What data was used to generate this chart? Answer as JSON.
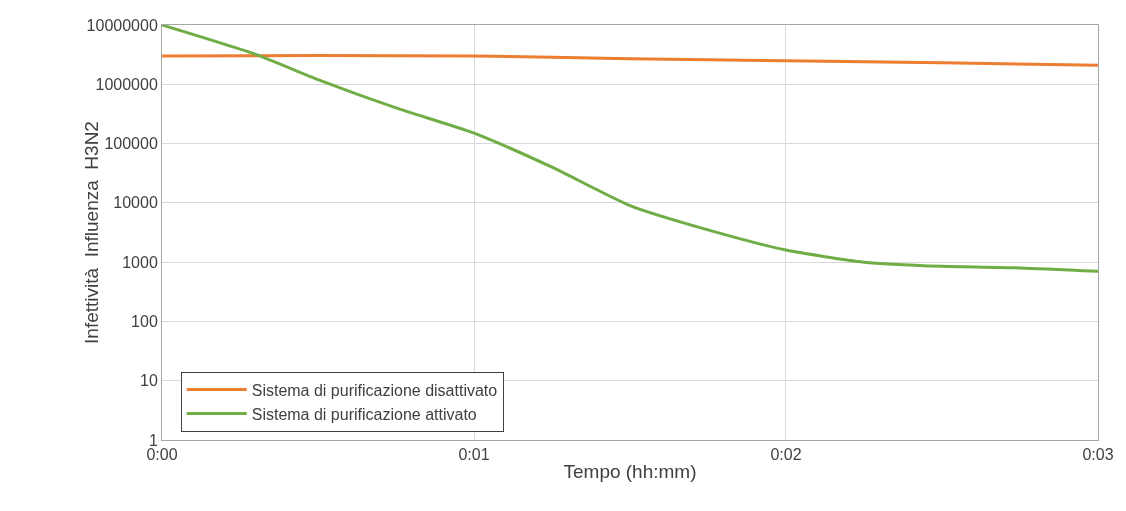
{
  "chart_data": {
    "type": "line",
    "xlabel": "Tempo (hh:mm)",
    "ylabel": "Infettività  Influenza  H3N2",
    "log": "y",
    "grid": true,
    "legend": "bottom left",
    "marker": "none",
    "line_style": "solid",
    "xlim": [
      0,
      0.05
    ],
    "xticks": [
      {
        "value": 0,
        "label": "0:00"
      },
      {
        "value": 0.016667,
        "label": "0:01"
      },
      {
        "value": 0.033333,
        "label": "0:02"
      },
      {
        "value": 0.05,
        "label": "0:03"
      }
    ],
    "ylim": [
      1,
      10000000
    ],
    "yticks": [
      1,
      10,
      100,
      1000,
      10000,
      100000,
      1000000,
      10000000
    ],
    "series": [
      {
        "name": "Sistema di purificazione disattivato",
        "color": "#ed7d31",
        "x": [
          0,
          0.008333,
          0.016667,
          0.025,
          0.033333,
          0.041667,
          0.05
        ],
        "values": [
          3000000,
          3050000,
          3000000,
          2700000,
          2500000,
          2300000,
          2100000
        ]
      },
      {
        "name": "Sistema di purificazione attivato",
        "color": "#70ad47",
        "x": [
          0,
          0.005,
          0.008333,
          0.0125,
          0.016667,
          0.020833,
          0.025,
          0.029167,
          0.033333,
          0.0375,
          0.041667,
          0.045833,
          0.05
        ],
        "values": [
          10000000,
          3200000,
          1200000,
          400000,
          150000,
          40000,
          9000,
          3500,
          1600,
          1000,
          850,
          800,
          700
        ]
      }
    ]
  }
}
